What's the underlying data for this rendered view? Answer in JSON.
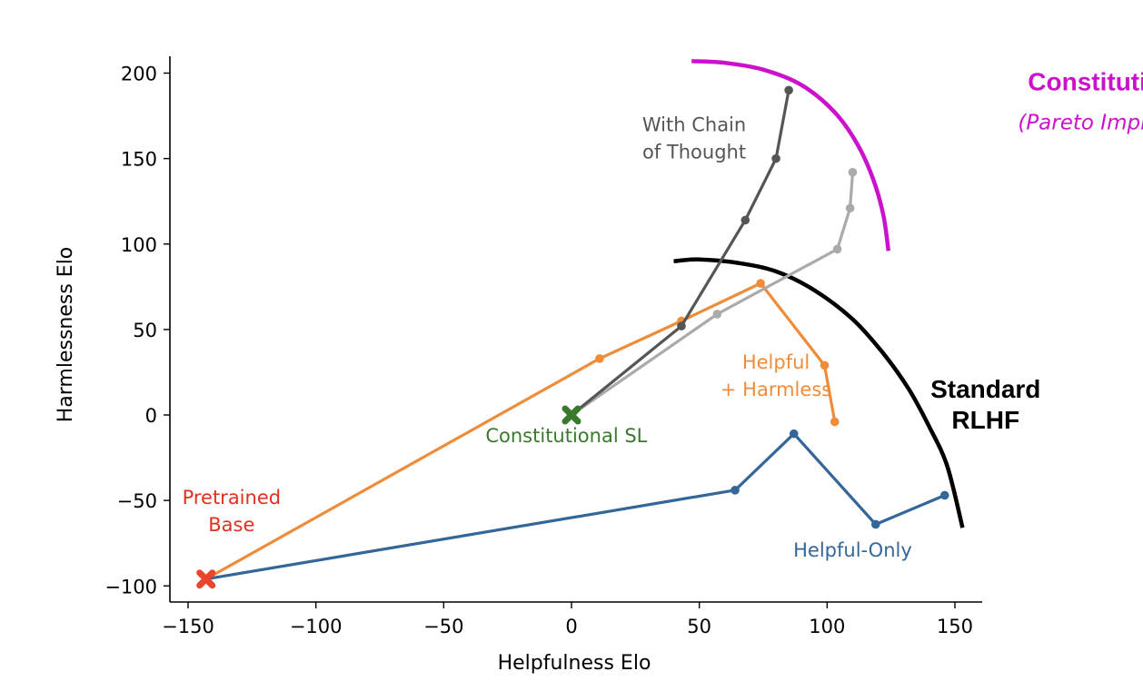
{
  "chart_data": {
    "type": "line",
    "title": "",
    "xlabel": "Helpfulness Elo",
    "ylabel": "Harmlessness Elo",
    "xlim": [
      -157,
      160
    ],
    "ylim": [
      -110,
      205
    ],
    "xticks": [
      -150,
      -100,
      -50,
      0,
      50,
      100,
      150
    ],
    "yticks": [
      -100,
      -50,
      0,
      50,
      100,
      150,
      200
    ],
    "xtick_labels": [
      "−150",
      "−100",
      "−50",
      "0",
      "50",
      "100",
      "150"
    ],
    "ytick_labels": [
      "−100",
      "−50",
      "0",
      "50",
      "100",
      "150",
      "200"
    ],
    "grid": false,
    "series": [
      {
        "key": "helpful_only",
        "color": "#336699",
        "points": [
          [
            -143,
            -96
          ],
          [
            64,
            -44
          ],
          [
            87,
            -11
          ],
          [
            119,
            -64
          ],
          [
            146,
            -47
          ]
        ]
      },
      {
        "key": "helpful_harmless",
        "color": "#EE8C3A",
        "points": [
          [
            -143,
            -96
          ],
          [
            11,
            33
          ],
          [
            43,
            55
          ],
          [
            74,
            77
          ],
          [
            99,
            29
          ],
          [
            103,
            -4
          ]
        ]
      },
      {
        "key": "constitutional_rl",
        "color": "#AAAAAA",
        "points": [
          [
            0,
            0
          ],
          [
            57,
            59
          ],
          [
            104,
            97
          ],
          [
            109,
            121
          ],
          [
            110,
            142
          ]
        ]
      },
      {
        "key": "chain_of_thought",
        "color": "#555555",
        "points": [
          [
            0,
            0
          ],
          [
            43,
            52
          ],
          [
            68,
            114
          ],
          [
            80,
            150
          ],
          [
            85,
            190
          ]
        ]
      }
    ],
    "markers": [
      {
        "key": "pretrained_base",
        "x": -143,
        "y": -96,
        "color": "#E8472E",
        "shape": "x"
      },
      {
        "key": "constitutional_sl",
        "x": 0,
        "y": 0,
        "color": "#3A7A2C",
        "shape": "x"
      }
    ],
    "frontiers": [
      {
        "key": "standard_rlhf",
        "color": "#000000",
        "points": [
          [
            40,
            90
          ],
          [
            50,
            91
          ],
          [
            65,
            89
          ],
          [
            80,
            84
          ],
          [
            95,
            73
          ],
          [
            110,
            56
          ],
          [
            122,
            36
          ],
          [
            132,
            15
          ],
          [
            140,
            -7
          ],
          [
            147,
            -30
          ],
          [
            153,
            -66
          ]
        ]
      },
      {
        "key": "constitutional_rl_frontier",
        "color": "#CC11CC",
        "points": [
          [
            47,
            207
          ],
          [
            60,
            206
          ],
          [
            75,
            202
          ],
          [
            90,
            193
          ],
          [
            103,
            177
          ],
          [
            112,
            158
          ],
          [
            118,
            138
          ],
          [
            122,
            117
          ],
          [
            124,
            96
          ]
        ]
      }
    ],
    "annotations": [
      {
        "key": "pretrained_base",
        "lines": [
          "Pretrained",
          "Base"
        ],
        "color": "#E03020",
        "x": -133,
        "y": -52,
        "style": "normal"
      },
      {
        "key": "constitutional_sl",
        "lines": [
          "Constitutional SL"
        ],
        "color": "#3A7A2C",
        "x": -2,
        "y": -16,
        "style": "normal"
      },
      {
        "key": "helpful_only",
        "lines": [
          "Helpful-Only"
        ],
        "color": "#336699",
        "x": 110,
        "y": -83,
        "style": "normal"
      },
      {
        "key": "helpful_harmless",
        "lines": [
          "Helpful",
          "+ Harmless"
        ],
        "color": "#EE8C3A",
        "x": 80,
        "y": 27,
        "style": "normal"
      },
      {
        "key": "with_chain_of_thought",
        "lines": [
          "With Chain",
          "of Thought"
        ],
        "color": "#555555",
        "x": 48,
        "y": 166,
        "style": "normal"
      },
      {
        "key": "standard_rlhf",
        "lines": [
          "Standard",
          "RLHF"
        ],
        "color": "#000000",
        "x": 162,
        "y": 10,
        "style": "bold"
      },
      {
        "key": "constitutional_rl_title",
        "lines": [
          "Constitutional RL"
        ],
        "color": "#CC11CC",
        "x": 220,
        "y": 190,
        "style": "bold"
      },
      {
        "key": "pareto_improvement",
        "lines": [
          "(Pareto Improvement)"
        ],
        "color": "#CC11CC",
        "x": 220,
        "y": 167,
        "style": "italic"
      }
    ]
  }
}
